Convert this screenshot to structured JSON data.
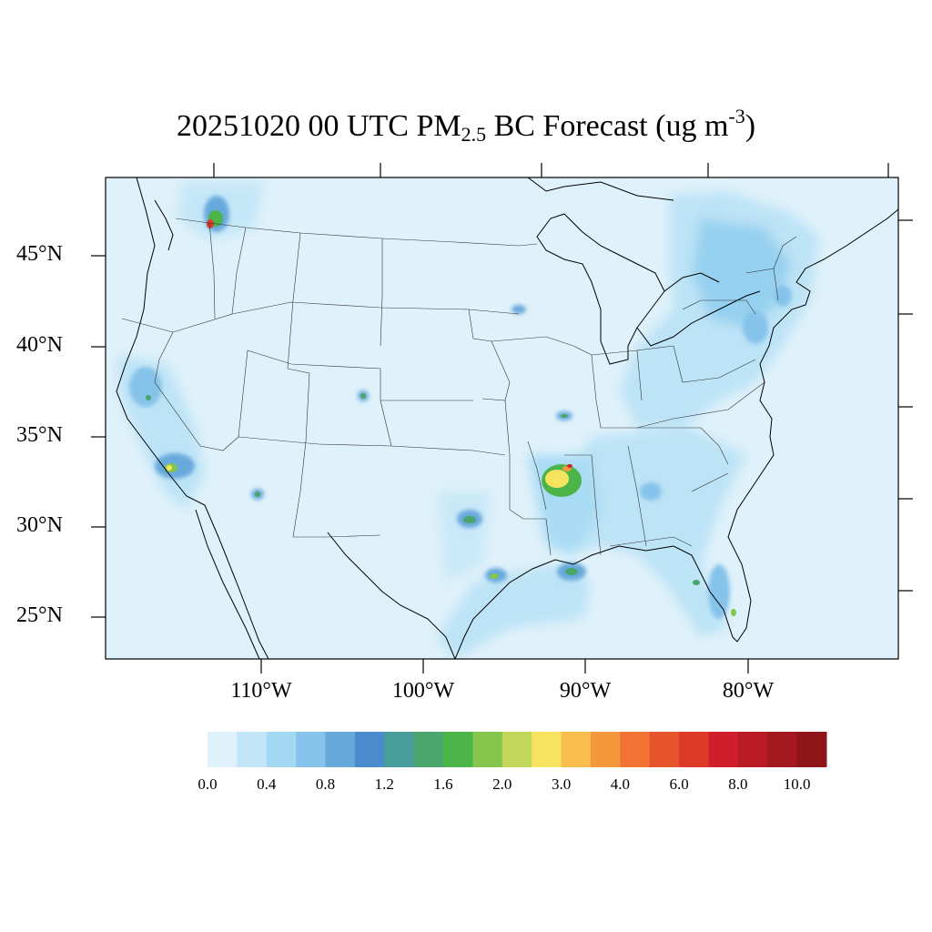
{
  "title": {
    "prefix": "20251020 00 UTC PM",
    "sub": "2.5",
    "mid": " BC Forecast (ug m",
    "sup": "-3",
    "suffix": ")"
  },
  "map": {
    "region": "Contiguous United States",
    "lat_labels": [
      "45°N",
      "40°N",
      "35°N",
      "30°N",
      "25°N"
    ],
    "lon_labels": [
      "110°W",
      "100°W",
      "90°W",
      "80°W"
    ],
    "background_color": "#dff1fa"
  },
  "colorbar": {
    "labels": [
      "0.0",
      "0.4",
      "0.8",
      "1.2",
      "1.6",
      "2.0",
      "3.0",
      "4.0",
      "6.0",
      "8.0",
      "10.0"
    ],
    "colors": [
      "#dff1fa",
      "#c2e6f8",
      "#a4d9f4",
      "#85c3ea",
      "#68a9dc",
      "#4a8cce",
      "#479e9b",
      "#4aa66d",
      "#4cb54a",
      "#84c64c",
      "#c2d65a",
      "#f7e45e",
      "#f8bd4c",
      "#f5983d",
      "#f17232",
      "#e6542c",
      "#dd3a28",
      "#d01f2b",
      "#b81b24",
      "#a3171f",
      "#8e1519"
    ]
  },
  "hotspots": [
    {
      "name": "northern-idaho",
      "level": 3
    },
    {
      "name": "central-california",
      "level": 1
    },
    {
      "name": "southern-california",
      "level": 2
    },
    {
      "name": "arkansas-louisiana",
      "level": 4
    },
    {
      "name": "southeast-texas",
      "level": 2
    },
    {
      "name": "south-florida",
      "level": 2
    }
  ]
}
